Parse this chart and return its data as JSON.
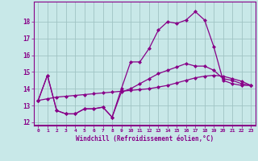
{
  "background_color": "#c8e8e8",
  "grid_color": "#a0c4c4",
  "line_color": "#880088",
  "marker": "D",
  "marker_size": 2.0,
  "line_width": 0.9,
  "xlim": [
    -0.5,
    23.5
  ],
  "ylim": [
    11.8,
    19.2
  ],
  "yticks": [
    12,
    13,
    14,
    15,
    16,
    17,
    18
  ],
  "xticks": [
    0,
    1,
    2,
    3,
    4,
    5,
    6,
    7,
    8,
    9,
    10,
    11,
    12,
    13,
    14,
    15,
    16,
    17,
    18,
    19,
    20,
    21,
    22,
    23
  ],
  "xlabel": "Windchill (Refroidissement éolien,°C)",
  "series": [
    [
      13.3,
      14.8,
      12.7,
      12.5,
      12.5,
      12.8,
      12.8,
      12.9,
      12.3,
      14.0,
      15.6,
      15.6,
      16.4,
      17.5,
      18.0,
      17.9,
      18.1,
      18.6,
      18.1,
      16.5,
      14.5,
      14.3,
      14.2,
      14.2
    ],
    [
      13.3,
      14.8,
      12.7,
      12.5,
      12.5,
      12.8,
      12.8,
      12.9,
      12.3,
      13.8,
      14.0,
      14.3,
      14.6,
      14.9,
      15.1,
      15.3,
      15.5,
      15.35,
      15.35,
      15.1,
      14.6,
      14.5,
      14.3,
      14.2
    ],
    [
      13.3,
      13.4,
      13.5,
      13.55,
      13.6,
      13.65,
      13.7,
      13.75,
      13.8,
      13.85,
      13.9,
      13.95,
      14.0,
      14.1,
      14.2,
      14.35,
      14.5,
      14.65,
      14.75,
      14.8,
      14.75,
      14.6,
      14.45,
      14.2
    ]
  ]
}
